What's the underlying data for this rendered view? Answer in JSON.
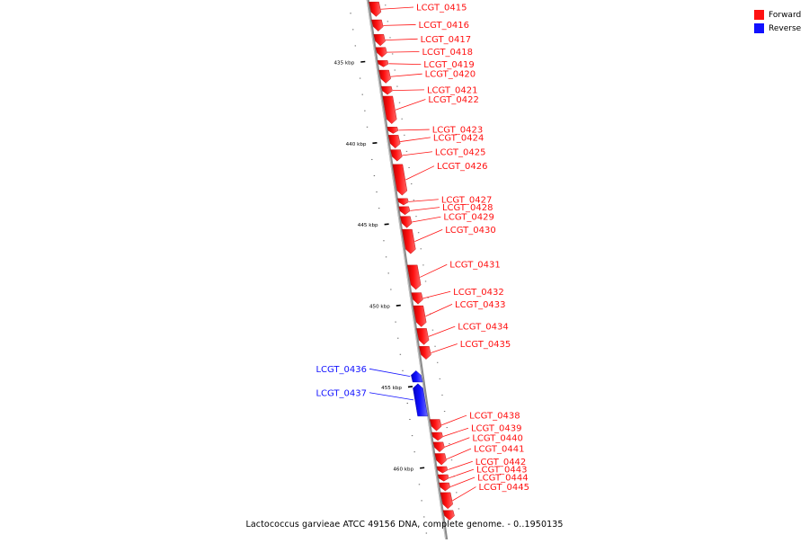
{
  "caption": "Lactococcus garvieae ATCC 49156 DNA, complete genome. - 0..1950135",
  "legend": {
    "forward": {
      "label": "Forward",
      "color": "#ff1111"
    },
    "reverse": {
      "label": "Reverse",
      "color": "#1111ff"
    }
  },
  "scale_unit": "kbp",
  "ticks": [
    {
      "kbp": 435,
      "label": "435 kbp"
    },
    {
      "kbp": 440,
      "label": "440 kbp"
    },
    {
      "kbp": 445,
      "label": "445 kbp"
    },
    {
      "kbp": 450,
      "label": "450 kbp"
    },
    {
      "kbp": 455,
      "label": "455 kbp"
    },
    {
      "kbp": 460,
      "label": "460 kbp"
    }
  ],
  "genes": [
    {
      "id": "LCGT_0415",
      "strand": "+",
      "start": 431.3,
      "end": 432.2
    },
    {
      "id": "LCGT_0416",
      "strand": "+",
      "start": 432.4,
      "end": 433.1
    },
    {
      "id": "LCGT_0417",
      "strand": "+",
      "start": 433.3,
      "end": 434.0
    },
    {
      "id": "LCGT_0418",
      "strand": "+",
      "start": 434.1,
      "end": 434.7
    },
    {
      "id": "LCGT_0419",
      "strand": "+",
      "start": 434.9,
      "end": 435.3
    },
    {
      "id": "LCGT_0420",
      "strand": "+",
      "start": 435.5,
      "end": 436.3
    },
    {
      "id": "LCGT_0421",
      "strand": "+",
      "start": 436.5,
      "end": 437.0
    },
    {
      "id": "LCGT_0422",
      "strand": "+",
      "start": 437.1,
      "end": 438.8
    },
    {
      "id": "LCGT_0423",
      "strand": "+",
      "start": 439.0,
      "end": 439.4
    },
    {
      "id": "LCGT_0424",
      "strand": "+",
      "start": 439.5,
      "end": 440.3
    },
    {
      "id": "LCGT_0425",
      "strand": "+",
      "start": 440.4,
      "end": 441.1
    },
    {
      "id": "LCGT_0426",
      "strand": "+",
      "start": 441.3,
      "end": 443.2
    },
    {
      "id": "LCGT_0427",
      "strand": "+",
      "start": 443.4,
      "end": 443.8
    },
    {
      "id": "LCGT_0428",
      "strand": "+",
      "start": 443.9,
      "end": 444.4
    },
    {
      "id": "LCGT_0429",
      "strand": "+",
      "start": 444.5,
      "end": 445.2
    },
    {
      "id": "LCGT_0430",
      "strand": "+",
      "start": 445.3,
      "end": 446.8
    },
    {
      "id": "LCGT_0431",
      "strand": "+",
      "start": 447.5,
      "end": 449.0
    },
    {
      "id": "LCGT_0432",
      "strand": "+",
      "start": 449.2,
      "end": 449.9
    },
    {
      "id": "LCGT_0433",
      "strand": "+",
      "start": 450.0,
      "end": 451.3
    },
    {
      "id": "LCGT_0434",
      "strand": "+",
      "start": 451.4,
      "end": 452.4
    },
    {
      "id": "LCGT_0435",
      "strand": "+",
      "start": 452.5,
      "end": 453.3
    },
    {
      "id": "LCGT_0436",
      "strand": "-",
      "start": 454.0,
      "end": 454.7
    },
    {
      "id": "LCGT_0437",
      "strand": "-",
      "start": 454.8,
      "end": 456.8
    },
    {
      "id": "LCGT_0438",
      "strand": "+",
      "start": 457.0,
      "end": 457.7
    },
    {
      "id": "LCGT_0439",
      "strand": "+",
      "start": 457.8,
      "end": 458.3
    },
    {
      "id": "LCGT_0440",
      "strand": "+",
      "start": 458.4,
      "end": 459.0
    },
    {
      "id": "LCGT_0441",
      "strand": "+",
      "start": 459.1,
      "end": 459.8
    },
    {
      "id": "LCGT_0442",
      "strand": "+",
      "start": 459.9,
      "end": 460.3
    },
    {
      "id": "LCGT_0443",
      "strand": "+",
      "start": 460.4,
      "end": 460.8
    },
    {
      "id": "LCGT_0444",
      "strand": "+",
      "start": 460.9,
      "end": 461.4
    },
    {
      "id": "LCGT_0445",
      "strand": "+",
      "start": 461.5,
      "end": 462.5
    },
    {
      "id": "",
      "strand": "+",
      "start": 462.6,
      "end": 463.2
    }
  ]
}
